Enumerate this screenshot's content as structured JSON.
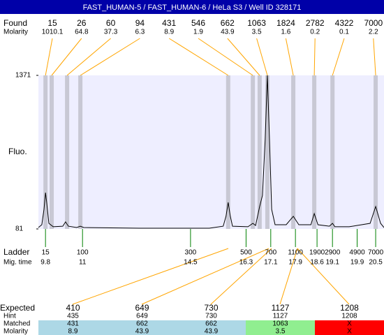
{
  "chart_data": {
    "type": "electropherogram",
    "title": "FAST_HUMAN-5 / FAST_HUMAN-6 / HeLa S3 / Well ID 328171",
    "found": {
      "label": "Found",
      "molarity_label": "Molarity",
      "sizes": [
        15,
        26,
        60,
        94,
        431,
        546,
        662,
        1063,
        1824,
        2782,
        4322,
        7000
      ],
      "molarity": [
        1010.1,
        64.8,
        37.3,
        6.3,
        8.9,
        1.9,
        43.9,
        3.5,
        1.6,
        0.2,
        0.1,
        2.2
      ],
      "x": [
        9.8,
        10.0,
        10.5,
        10.93,
        15.72,
        16.52,
        16.74,
        16.99,
        17.83,
        18.51,
        19.1,
        20.5
      ]
    },
    "ylabel": "Fluo.",
    "ylim": [
      81,
      1371
    ],
    "yticks": [
      81,
      1371
    ],
    "xlim": [
      9.57,
      20.77
    ],
    "trace": {
      "color": "#000000",
      "x": [
        9.57,
        9.68,
        9.75,
        9.8,
        9.84,
        9.91,
        10.05,
        10.36,
        10.45,
        10.54,
        10.81,
        10.93,
        11.04,
        12.85,
        15.11,
        15.56,
        15.65,
        15.72,
        15.79,
        15.86,
        16.36,
        16.52,
        16.61,
        16.74,
        16.83,
        16.92,
        16.99,
        17.06,
        17.13,
        17.24,
        17.6,
        17.83,
        18.01,
        18.4,
        18.51,
        18.63,
        19.0,
        19.1,
        19.18,
        19.64,
        20.32,
        20.5,
        20.66,
        20.77
      ],
      "values": [
        93,
        116,
        245,
        386,
        304,
        128,
        99,
        104,
        140,
        104,
        93,
        104,
        93,
        87,
        87,
        104,
        187,
        304,
        187,
        104,
        99,
        128,
        110,
        269,
        362,
        832,
        1371,
        832,
        245,
        116,
        116,
        187,
        116,
        116,
        210,
        116,
        104,
        128,
        99,
        99,
        128,
        269,
        128,
        93
      ]
    },
    "ladder": {
      "label": "Ladder",
      "mig_label": "Mig. time",
      "sizes": [
        15,
        100,
        300,
        500,
        700,
        1100,
        1900,
        2900,
        4900,
        7000
      ],
      "times": [
        9.8,
        11,
        14.5,
        16.3,
        17.1,
        17.9,
        18.6,
        19.1,
        19.9,
        20.5
      ]
    },
    "expected": {
      "row_labels": [
        "Expected",
        "Hint",
        "Matched",
        "Molarity"
      ],
      "expected": [
        410,
        649,
        730,
        1127,
        1208
      ],
      "hint": [
        435,
        649,
        730,
        1127,
        1208
      ],
      "matched": [
        431,
        662,
        662,
        1063,
        "X"
      ],
      "molarity": [
        8.9,
        43.9,
        43.9,
        3.5,
        "X"
      ],
      "colors": [
        "#add8e6",
        "#add8e6",
        "#add8e6",
        "#90ee90",
        "#ff0000"
      ]
    }
  }
}
